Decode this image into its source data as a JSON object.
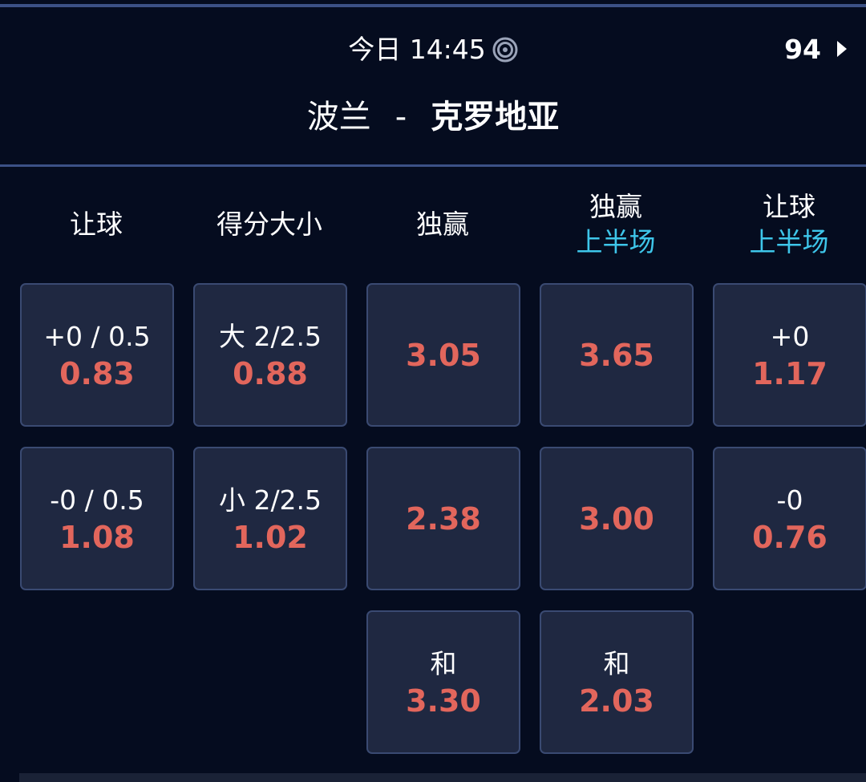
{
  "header": {
    "time_label": "今日 14:45",
    "live_icon": "target-icon",
    "score_count": "94",
    "arrow_icon": "caret-right-icon",
    "home_team": "波兰",
    "separator": "-",
    "away_team": "克罗地亚"
  },
  "colors": {
    "background": "#050c1f",
    "card": "#1f2841",
    "border": "#3a4a72",
    "odds": "#e2665c",
    "subtitle": "#3ec6ea"
  },
  "columns": [
    {
      "title": "让球",
      "subtitle": "",
      "cards": [
        {
          "label": "+0 / 0.5",
          "odd": "0.83"
        },
        {
          "label": "-0 / 0.5",
          "odd": "1.08"
        }
      ]
    },
    {
      "title": "得分大小",
      "subtitle": "",
      "cards": [
        {
          "label": "大 2/2.5",
          "odd": "0.88"
        },
        {
          "label": "小 2/2.5",
          "odd": "1.02"
        }
      ]
    },
    {
      "title": "独赢",
      "subtitle": "",
      "cards": [
        {
          "label": "",
          "odd": "3.05"
        },
        {
          "label": "",
          "odd": "2.38"
        },
        {
          "label": "和",
          "odd": "3.30"
        }
      ]
    },
    {
      "title": "独赢",
      "subtitle": "上半场",
      "cards": [
        {
          "label": "",
          "odd": "3.65"
        },
        {
          "label": "",
          "odd": "3.00"
        },
        {
          "label": "和",
          "odd": "2.03"
        }
      ]
    },
    {
      "title": "让球",
      "subtitle": "上半场",
      "cards": [
        {
          "label": "+0",
          "odd": "1.17"
        },
        {
          "label": "-0",
          "odd": "0.76"
        }
      ]
    }
  ]
}
